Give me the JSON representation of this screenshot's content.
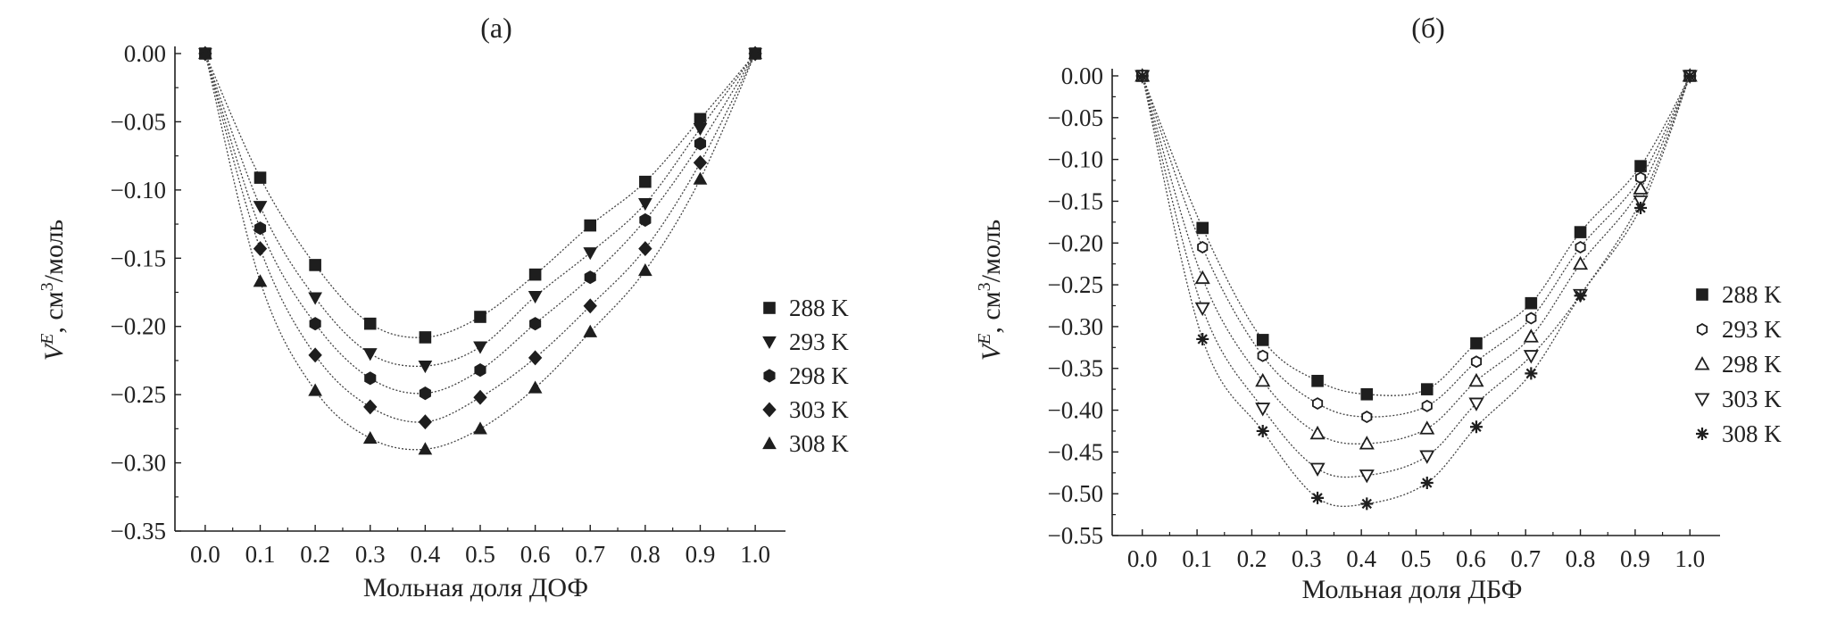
{
  "chart_data": [
    {
      "type": "scatter",
      "title": "(a)",
      "xlabel": "Мольная доля ДОФ",
      "ylabel_parts": [
        "V",
        "E",
        ", см",
        "3",
        "/моль"
      ],
      "xlim": [
        0.0,
        1.0
      ],
      "ylim": [
        -0.35,
        0.0
      ],
      "xticks": [
        "0.0",
        "0.1",
        "0.2",
        "0.3",
        "0.4",
        "0.5",
        "0.6",
        "0.7",
        "0.8",
        "0.9",
        "1.0"
      ],
      "yticks": [
        "0.00",
        "−0.05",
        "−0.10",
        "−0.15",
        "−0.20",
        "−0.25",
        "−0.30",
        "−0.35"
      ],
      "grid": false,
      "legend_position": "right",
      "fitted_curves": true,
      "x": [
        0.0,
        0.1,
        0.2,
        0.3,
        0.4,
        0.5,
        0.6,
        0.7,
        0.8,
        0.9,
        1.0
      ],
      "series": [
        {
          "name": "288 K",
          "marker": "asterisk-square",
          "values": [
            0.0,
            -0.091,
            -0.155,
            -0.198,
            -0.208,
            -0.193,
            -0.162,
            -0.126,
            -0.094,
            -0.048,
            0.0
          ]
        },
        {
          "name": "293 K",
          "marker": "triangle-down",
          "values": [
            0.0,
            -0.112,
            -0.179,
            -0.22,
            -0.229,
            -0.215,
            -0.178,
            -0.146,
            -0.11,
            -0.055,
            0.0
          ]
        },
        {
          "name": "298 K",
          "marker": "hexagon",
          "values": [
            0.0,
            -0.128,
            -0.198,
            -0.238,
            -0.249,
            -0.232,
            -0.198,
            -0.164,
            -0.122,
            -0.066,
            0.0
          ]
        },
        {
          "name": "303 K",
          "marker": "diamond",
          "values": [
            0.0,
            -0.143,
            -0.221,
            -0.259,
            -0.27,
            -0.252,
            -0.223,
            -0.185,
            -0.143,
            -0.08,
            0.0
          ]
        },
        {
          "name": "308 K",
          "marker": "triangle-up",
          "values": [
            0.0,
            -0.167,
            -0.247,
            -0.282,
            -0.29,
            -0.275,
            -0.245,
            -0.204,
            -0.159,
            -0.092,
            0.0
          ]
        }
      ]
    },
    {
      "type": "scatter",
      "title": "(б)",
      "xlabel": "Мольная доля ДБФ",
      "ylabel_parts": [
        "V",
        "E",
        ", см",
        "3",
        "/моль"
      ],
      "xlim": [
        0.0,
        1.0
      ],
      "ylim": [
        -0.55,
        0.0
      ],
      "xticks": [
        "0.0",
        "0.1",
        "0.2",
        "0.3",
        "0.4",
        "0.5",
        "0.6",
        "0.7",
        "0.8",
        "0.9",
        "1.0"
      ],
      "yticks": [
        "0.00",
        "−0.05",
        "−0.10",
        "−0.15",
        "−0.20",
        "−0.25",
        "−0.30",
        "−0.35",
        "−0.40",
        "−0.45",
        "−0.50",
        "−0.55"
      ],
      "grid": false,
      "legend_position": "right",
      "fitted_curves": true,
      "x": [
        0.0,
        0.11,
        0.22,
        0.32,
        0.41,
        0.52,
        0.61,
        0.71,
        0.8,
        0.91,
        1.0
      ],
      "series": [
        {
          "name": "288 K",
          "marker": "filled-square",
          "values": [
            0.0,
            -0.182,
            -0.316,
            -0.365,
            -0.381,
            -0.375,
            -0.32,
            -0.272,
            -0.187,
            -0.108,
            0.0
          ]
        },
        {
          "name": "293 K",
          "marker": "open-hexagon",
          "values": [
            0.0,
            -0.205,
            -0.335,
            -0.392,
            -0.408,
            -0.395,
            -0.342,
            -0.29,
            -0.205,
            -0.122,
            0.0
          ]
        },
        {
          "name": "298 K",
          "marker": "open-triangle-up",
          "values": [
            0.0,
            -0.242,
            -0.365,
            -0.428,
            -0.44,
            -0.422,
            -0.365,
            -0.312,
            -0.225,
            -0.135,
            0.0
          ]
        },
        {
          "name": "303 K",
          "marker": "open-triangle-down",
          "values": [
            0.0,
            -0.278,
            -0.398,
            -0.47,
            -0.478,
            -0.455,
            -0.392,
            -0.335,
            -0.262,
            -0.15,
            0.0
          ]
        },
        {
          "name": "308 K",
          "marker": "star-cross",
          "values": [
            0.0,
            -0.315,
            -0.425,
            -0.505,
            -0.512,
            -0.487,
            -0.42,
            -0.356,
            -0.263,
            -0.158,
            0.0
          ]
        }
      ]
    }
  ]
}
